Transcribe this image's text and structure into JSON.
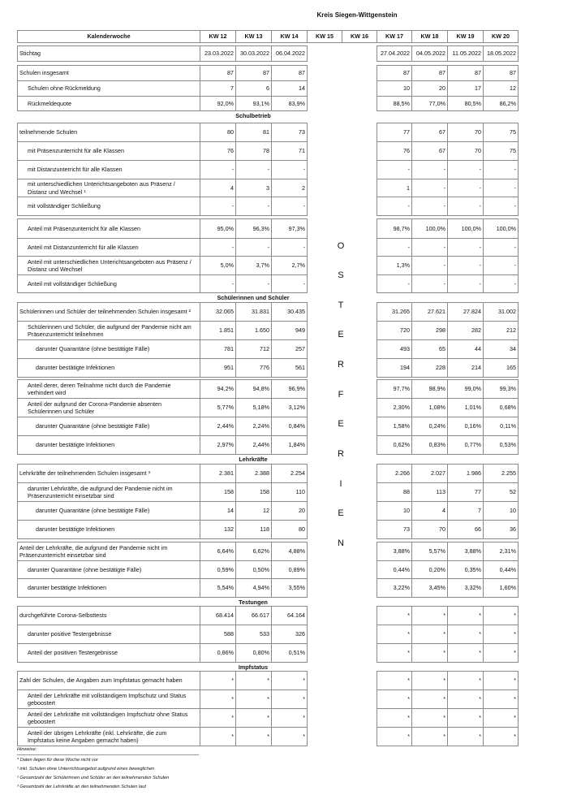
{
  "title": "Kreis Siegen-Wittgenstein",
  "header": {
    "label": "Kalenderwoche",
    "weeks": [
      "KW 12",
      "KW 13",
      "KW 14",
      "KW 15",
      "KW 16",
      "KW 17",
      "KW 18",
      "KW 19",
      "KW 20"
    ]
  },
  "stichtag": {
    "label": "Stichtag",
    "values": [
      "23.03.2022",
      "30.03.2022",
      "06.04.2022",
      "27.04.2022",
      "04.05.2022",
      "11.05.2022",
      "18.05.2022"
    ]
  },
  "ferien_letters": [
    "O",
    "S",
    "T",
    "E",
    "R",
    "F",
    "E",
    "R",
    "I",
    "E",
    "N"
  ],
  "rows": [
    {
      "type": "gap"
    },
    {
      "label": "Schulen insgesamt",
      "indent": 0,
      "values": [
        "87",
        "87",
        "87",
        "87",
        "87",
        "87",
        "87"
      ]
    },
    {
      "label": "Schulen ohne Rückmeldung",
      "indent": 1,
      "values": [
        "7",
        "6",
        "14",
        "10",
        "20",
        "17",
        "12"
      ]
    },
    {
      "label": "Rückmeldequote",
      "indent": 1,
      "values": [
        "92,0%",
        "93,1%",
        "83,9%",
        "88,5%",
        "77,0%",
        "80,5%",
        "86,2%"
      ]
    },
    {
      "type": "section",
      "label": "Schulbetrieb"
    },
    {
      "label": "teilnehmende Schulen",
      "indent": 0,
      "values": [
        "80",
        "81",
        "73",
        "77",
        "67",
        "70",
        "75"
      ]
    },
    {
      "label": "mit Präsenzunterricht für alle Klassen",
      "indent": 1,
      "values": [
        "76",
        "78",
        "71",
        "76",
        "67",
        "70",
        "75"
      ]
    },
    {
      "label": "mit Distanzunterricht für alle Klassen",
      "indent": 1,
      "values": [
        "-",
        "-",
        "-",
        "-",
        "-",
        "-",
        "-"
      ]
    },
    {
      "label": "mit unterschiedlichen Unterichtsangeboten aus Präsenz / Distanz und Wechsel ¹",
      "indent": 1,
      "values": [
        "4",
        "3",
        "2",
        "1",
        "-",
        "-",
        "-"
      ]
    },
    {
      "label": "mit vollständiger Schließung",
      "indent": 1,
      "values": [
        "-",
        "-",
        "-",
        "-",
        "-",
        "-",
        "-"
      ]
    },
    {
      "type": "gap"
    },
    {
      "label": "Anteil mit Präsenzunterricht für alle Klassen",
      "indent": 1,
      "values": [
        "95,0%",
        "96,3%",
        "97,3%",
        "98,7%",
        "100,0%",
        "100,0%",
        "100,0%"
      ]
    },
    {
      "label": "Anteil mit Distanzunterricht für alle Klassen",
      "indent": 1,
      "values": [
        "-",
        "-",
        "-",
        "-",
        "-",
        "-",
        "-"
      ]
    },
    {
      "label": "Anteil mit unterschiedlichen Unterichtsangeboten aus Präsenz / Distanz und Wechsel",
      "indent": 1,
      "values": [
        "5,0%",
        "3,7%",
        "2,7%",
        "1,3%",
        "-",
        "-",
        "-"
      ]
    },
    {
      "label": "Anteil mit vollständiger Schließung",
      "indent": 1,
      "values": [
        "-",
        "-",
        "-",
        "-",
        "-",
        "-",
        "-"
      ]
    },
    {
      "type": "section",
      "label": "Schülerinnen und Schüler"
    },
    {
      "label": "Schülerinnen und Schüler der teilnehmenden Schulen insgesamt ²",
      "indent": 0,
      "values": [
        "32.065",
        "31.831",
        "30.435",
        "31.265",
        "27.621",
        "27.824",
        "31.002"
      ]
    },
    {
      "label": "Schülerinnen und Schüler, die aufgrund der Pandemie nicht am Präsenzunterricht teilnehmen",
      "indent": 1,
      "values": [
        "1.851",
        "1.650",
        "949",
        "720",
        "298",
        "282",
        "212"
      ]
    },
    {
      "label": "darunter Quarantäne (ohne bestätigte Fälle)",
      "indent": 2,
      "values": [
        "781",
        "712",
        "257",
        "493",
        "65",
        "44",
        "34"
      ]
    },
    {
      "label": "darunter bestätigte Infektionen",
      "indent": 2,
      "values": [
        "951",
        "776",
        "561",
        "194",
        "228",
        "214",
        "165"
      ]
    },
    {
      "type": "gap"
    },
    {
      "label": "Anteil derer, deren Teilnahme nicht durch die Pandemie verhindert wird",
      "indent": 1,
      "values": [
        "94,2%",
        "94,8%",
        "96,9%",
        "97,7%",
        "98,9%",
        "99,0%",
        "99,3%"
      ]
    },
    {
      "label": "Anteil der aufgrund der Corona-Pandemie absenten Schülerinnen und Schüler",
      "indent": 1,
      "values": [
        "5,77%",
        "5,18%",
        "3,12%",
        "2,30%",
        "1,08%",
        "1,01%",
        "0,68%"
      ]
    },
    {
      "label": "darunter Quarantäne (ohne bestätigte Fälle)",
      "indent": 2,
      "values": [
        "2,44%",
        "2,24%",
        "0,84%",
        "1,58%",
        "0,24%",
        "0,16%",
        "0,11%"
      ]
    },
    {
      "label": "darunter bestätigte Infektionen",
      "indent": 2,
      "values": [
        "2,97%",
        "2,44%",
        "1,84%",
        "0,62%",
        "0,83%",
        "0,77%",
        "0,53%"
      ]
    },
    {
      "type": "section",
      "label": "Lehrkräfte"
    },
    {
      "label": "Lehrkräfte der teilnehmenden Schulen insgesamt ³",
      "indent": 0,
      "values": [
        "2.381",
        "2.388",
        "2.254",
        "2.266",
        "2.027",
        "1.986",
        "2.255"
      ]
    },
    {
      "label": "darunter Lehrkräfte, die aufgrund der Pandemie nicht im Präsenzunterricht einsetzbar sind",
      "indent": 1,
      "values": [
        "158",
        "158",
        "110",
        "88",
        "113",
        "77",
        "52"
      ]
    },
    {
      "label": "darunter Quarantäne (ohne bestätigte Fälle)",
      "indent": 2,
      "values": [
        "14",
        "12",
        "20",
        "10",
        "4",
        "7",
        "10"
      ]
    },
    {
      "label": "darunter bestätigte Infektionen",
      "indent": 2,
      "values": [
        "132",
        "118",
        "80",
        "73",
        "70",
        "66",
        "36"
      ]
    },
    {
      "type": "gap"
    },
    {
      "label": "Anteil der Lehrkräfte, die aufgrund der Pandemie nicht im Präsenzunterricht einsetzbar sind",
      "indent": 0,
      "values": [
        "6,64%",
        "6,62%",
        "4,88%",
        "3,88%",
        "5,57%",
        "3,88%",
        "2,31%"
      ]
    },
    {
      "label": "darunter Quarantäne (ohne bestätigte Fälle)",
      "indent": 1,
      "values": [
        "0,59%",
        "0,50%",
        "0,89%",
        "0,44%",
        "0,20%",
        "0,35%",
        "0,44%"
      ]
    },
    {
      "label": "darunter bestätigte Infektionen",
      "indent": 1,
      "values": [
        "5,54%",
        "4,94%",
        "3,55%",
        "3,22%",
        "3,45%",
        "3,32%",
        "1,60%"
      ]
    },
    {
      "type": "section",
      "label": "Testungen"
    },
    {
      "label": "durchgeführte Corona-Selbsttests",
      "indent": 0,
      "values": [
        "68.414",
        "66.617",
        "64.164",
        "*",
        "*",
        "*",
        "*"
      ]
    },
    {
      "label": "darunter positive Testergebnisse",
      "indent": 1,
      "values": [
        "588",
        "533",
        "326",
        "*",
        "*",
        "*",
        "*"
      ]
    },
    {
      "label": "Anteil der positiven Testergebnisse",
      "indent": 1,
      "values": [
        "0,86%",
        "0,80%",
        "0,51%",
        "*",
        "*",
        "*",
        "*"
      ]
    },
    {
      "type": "section",
      "label": "Impfstatus"
    },
    {
      "label": "Zahl der Schulen, die Angaben zum Impfstatus gemacht haben",
      "indent": 0,
      "values": [
        "*",
        "*",
        "*",
        "*",
        "*",
        "*",
        "*"
      ]
    },
    {
      "label": "Anteil der Lehrkräfte mit vollständigem Impfschutz und Status geboostert",
      "indent": 1,
      "values": [
        "*",
        "*",
        "*",
        "*",
        "*",
        "*",
        "*"
      ]
    },
    {
      "label": "Anteil der Lehrkräfte mit vollständigen Impfschutz ohne Status geboostert",
      "indent": 1,
      "values": [
        "*",
        "*",
        "*",
        "*",
        "*",
        "*",
        "*"
      ]
    },
    {
      "label": "Anteil der übrigen Lehrkräfte (inkl. Lehrkräfte, die zum Impfstatus keine Angaben gemacht haben)",
      "indent": 1,
      "values": [
        "*",
        "*",
        "*",
        "*",
        "*",
        "*",
        "*"
      ]
    }
  ],
  "notes": {
    "heading": "Hinweise:",
    "items": [
      "* Daten liegen für diese Woche nicht vor",
      "¹ inkl. Schulen ohne Unterrichtsangebot aufgrund eines beweglichen",
      "² Gesamtzahl der Schülerinnen und Schüler an den teilnehmenden Schulen",
      "³ Gesamtzahl der Lehrkräfte an den teilnehmenden Schulen laut"
    ]
  }
}
